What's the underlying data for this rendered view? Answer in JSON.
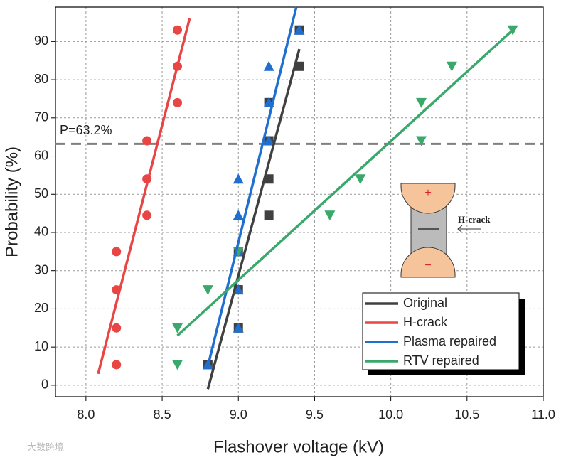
{
  "chart_data": {
    "type": "scatter",
    "xlabel": "Flashover voltage (kV)",
    "ylabel": "Probability (%)",
    "xlim": [
      7.8,
      11.0
    ],
    "ylim": [
      -3,
      99
    ],
    "xticks": [
      {
        "value": 8,
        "label": "8.0"
      },
      8.5,
      {
        "value": 9,
        "label": "9.0"
      },
      9.5,
      {
        "value": 10,
        "label": "10.0"
      },
      10.5,
      {
        "value": 11,
        "label": "11.0"
      }
    ],
    "yticks": [
      0,
      10,
      20,
      30,
      40,
      50,
      60,
      70,
      80,
      90
    ],
    "grid": true,
    "legend": "lower right",
    "series": [
      {
        "name": "Original",
        "color": "#404040",
        "marker": "square",
        "x": [
          8.8,
          9.0,
          9.0,
          9.0,
          9.2,
          9.2,
          9.2,
          9.2,
          9.4,
          9.4
        ],
        "values": [
          5.4,
          15,
          25,
          35,
          44.5,
          54,
          64,
          74,
          83.5,
          93
        ],
        "fit": {
          "x": [
            8.8,
            9.4
          ],
          "values": [
            -1,
            88
          ]
        }
      },
      {
        "name": "H-crack",
        "color": "#e84545",
        "marker": "circle",
        "x": [
          8.2,
          8.2,
          8.2,
          8.2,
          8.4,
          8.4,
          8.4,
          8.6,
          8.6,
          8.6
        ],
        "values": [
          5.4,
          15,
          25,
          35,
          44.5,
          54,
          64,
          74,
          83.5,
          93
        ],
        "fit": {
          "x": [
            8.08,
            8.68
          ],
          "values": [
            3,
            96
          ]
        }
      },
      {
        "name": "Plasma repaired",
        "color": "#1f6fd1",
        "marker": "triangle-up",
        "x": [
          8.8,
          9.0,
          9.0,
          9.0,
          9.0,
          9.0,
          9.2,
          9.2,
          9.2,
          9.4
        ],
        "values": [
          5.4,
          15,
          25,
          35,
          44.5,
          54,
          64,
          74,
          83.5,
          93
        ],
        "fit": {
          "x": [
            8.8,
            9.38
          ],
          "values": [
            5,
            99
          ]
        }
      },
      {
        "name": "RTV repaired",
        "color": "#3aa86b",
        "marker": "triangle-down",
        "x": [
          8.6,
          8.6,
          8.8,
          9.0,
          9.6,
          9.8,
          10.2,
          10.2,
          10.4,
          10.8
        ],
        "values": [
          5.4,
          15,
          25,
          35,
          44.5,
          54,
          64,
          74,
          83.5,
          93
        ],
        "fit": {
          "x": [
            8.6,
            10.8
          ],
          "values": [
            13,
            93
          ]
        }
      }
    ],
    "reference_line": {
      "value": 63.2,
      "label": "P=63.2%",
      "color": "#808080"
    },
    "inset": {
      "plus": "+",
      "minus": "−",
      "label": "H-crack"
    },
    "watermark": "大数跨境"
  }
}
